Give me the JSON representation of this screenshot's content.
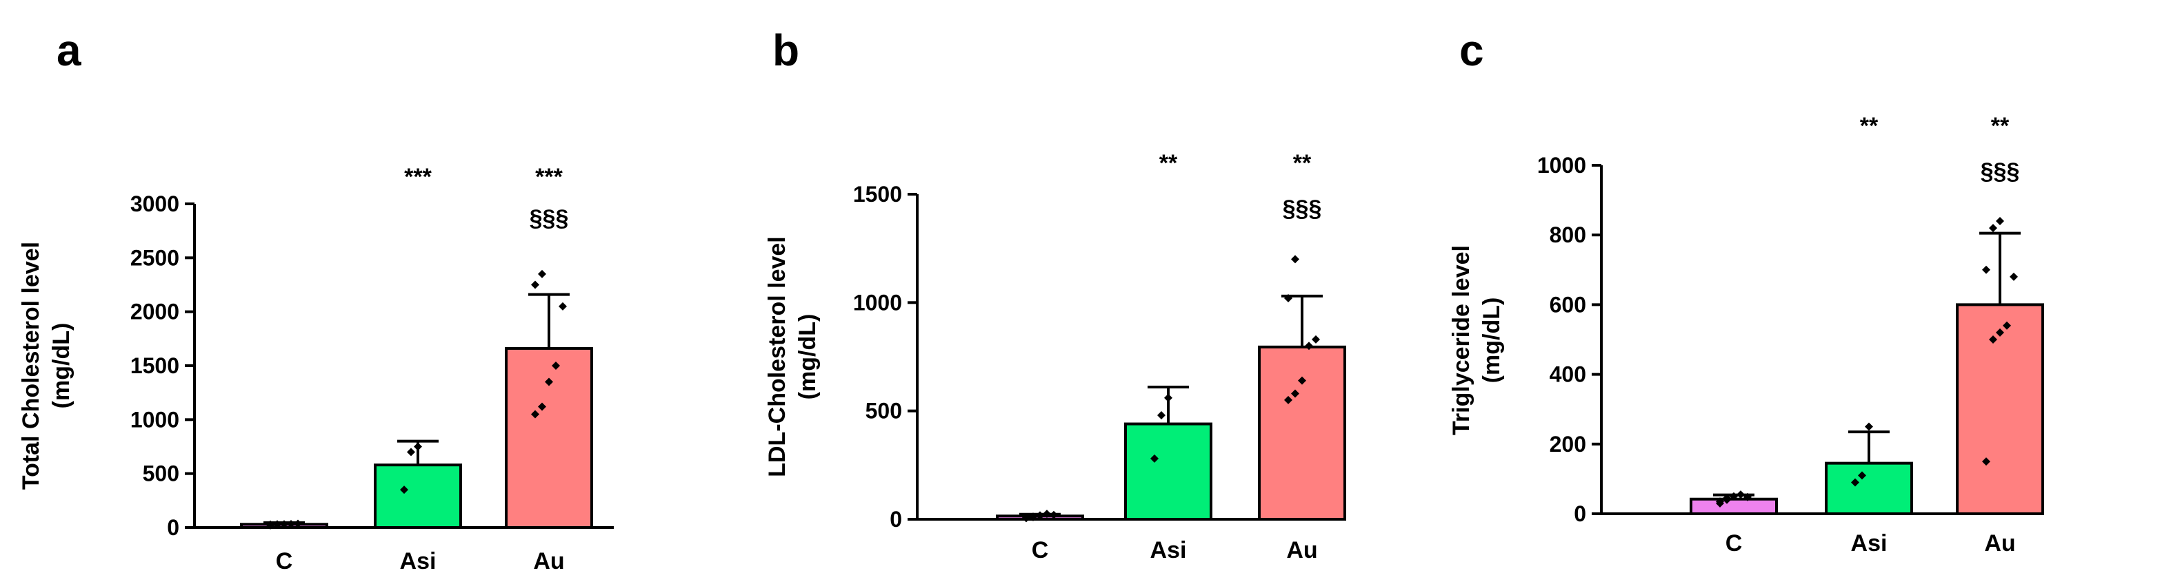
{
  "chart_data": [
    {
      "type": "bar",
      "panel": "a",
      "categories": [
        "C",
        "Asi",
        "Au"
      ],
      "values": [
        30,
        580,
        1660
      ],
      "error": [
        15,
        220,
        500
      ],
      "points": [
        [
          20,
          25,
          30,
          32,
          35,
          28,
          30
        ],
        [
          350,
          700,
          750
        ],
        [
          1050,
          1120,
          1350,
          1500,
          2050,
          2250,
          2350
        ]
      ],
      "bar_colors": [
        "#ee82ee",
        "#00ee77",
        "#ff8080"
      ],
      "ylabel_line1": "Total Cholesterol level",
      "ylabel_line2": "(mg/dL)",
      "ylim": [
        0,
        3000
      ],
      "yticks": [
        0,
        500,
        1000,
        1500,
        2000,
        2500,
        3000
      ],
      "significance_top": [
        "",
        "***",
        "***"
      ],
      "significance_bottom": [
        "",
        "",
        "§§§"
      ]
    },
    {
      "type": "bar",
      "panel": "b",
      "categories": [
        "C",
        "Asi",
        "Au"
      ],
      "values": [
        15,
        440,
        795
      ],
      "error": [
        8,
        170,
        235
      ],
      "points": [
        [
          5,
          10,
          15,
          25,
          20,
          8,
          12,
          18
        ],
        [
          280,
          480,
          560
        ],
        [
          550,
          580,
          640,
          800,
          830,
          1020,
          1200
        ]
      ],
      "bar_colors": [
        "#ee82ee",
        "#00ee77",
        "#ff8080"
      ],
      "ylabel_line1": "LDL-Cholesterol level",
      "ylabel_line2": "(mg/dL)",
      "ylim": [
        0,
        1500
      ],
      "yticks": [
        0,
        500,
        1000,
        1500
      ],
      "significance_top": [
        "",
        "**",
        "**"
      ],
      "significance_bottom": [
        "",
        "",
        "§§§"
      ]
    },
    {
      "type": "bar",
      "panel": "c",
      "categories": [
        "C",
        "Asi",
        "Au"
      ],
      "values": [
        42,
        145,
        600
      ],
      "error": [
        12,
        90,
        205
      ],
      "points": [
        [
          30,
          40,
          50,
          55,
          48,
          35,
          45
        ],
        [
          90,
          110,
          250
        ],
        [
          150,
          500,
          520,
          540,
          680,
          700,
          820,
          840
        ]
      ],
      "bar_colors": [
        "#ee82ee",
        "#00ee77",
        "#ff8080"
      ],
      "ylabel_line1": "Triglyceride level",
      "ylabel_line2": "(mg/dL)",
      "ylim": [
        0,
        1000
      ],
      "yticks": [
        0,
        200,
        400,
        600,
        800,
        1000
      ],
      "significance_top": [
        "",
        "**",
        "**"
      ],
      "significance_bottom": [
        "",
        "",
        "§§§"
      ]
    }
  ]
}
